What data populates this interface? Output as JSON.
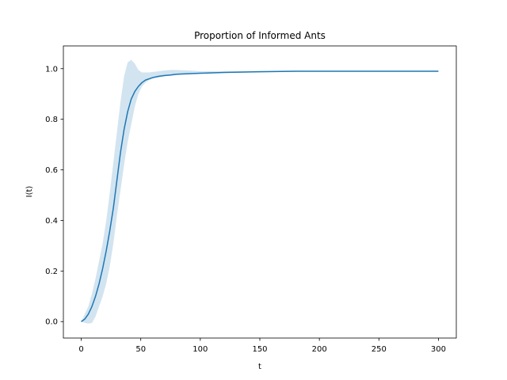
{
  "chart_data": {
    "type": "line",
    "title": "Proportion of Informed Ants",
    "xlabel": "t",
    "ylabel": "I(t)",
    "xlim": [
      -15,
      315
    ],
    "ylim": [
      -0.065,
      1.09
    ],
    "xticks": [
      0,
      50,
      100,
      150,
      200,
      250,
      300
    ],
    "xtick_labels": [
      "0",
      "50",
      "100",
      "150",
      "200",
      "250",
      "300"
    ],
    "yticks": [
      0.0,
      0.2,
      0.4,
      0.6,
      0.8,
      1.0
    ],
    "ytick_labels": [
      "0.0",
      "0.2",
      "0.4",
      "0.6",
      "0.8",
      "1.0"
    ],
    "grid": false,
    "colors": {
      "line": "#1f77b4",
      "band": "#1f77b4"
    },
    "series": [
      {
        "x": [
          0,
          3,
          6,
          9,
          12,
          15,
          18,
          21,
          24,
          27,
          30,
          33,
          36,
          39,
          42,
          45,
          48,
          51,
          54,
          57,
          60,
          65,
          70,
          75,
          80,
          90,
          100,
          120,
          150,
          180,
          200,
          250,
          300
        ],
        "y": [
          0.0,
          0.01,
          0.03,
          0.06,
          0.1,
          0.15,
          0.21,
          0.28,
          0.36,
          0.45,
          0.56,
          0.67,
          0.76,
          0.83,
          0.88,
          0.91,
          0.93,
          0.945,
          0.955,
          0.96,
          0.965,
          0.97,
          0.973,
          0.975,
          0.978,
          0.98,
          0.982,
          0.985,
          0.988,
          0.99,
          0.99,
          0.99,
          0.99
        ],
        "lower": [
          0.0,
          -0.005,
          -0.008,
          -0.005,
          0.02,
          0.06,
          0.1,
          0.15,
          0.22,
          0.31,
          0.42,
          0.52,
          0.62,
          0.71,
          0.78,
          0.85,
          0.9,
          0.93,
          0.945,
          0.955,
          0.96,
          0.965,
          0.97,
          0.972,
          0.975,
          0.978,
          0.98,
          0.983,
          0.986,
          0.988,
          0.99,
          0.99,
          0.99
        ],
        "upper": [
          0.0,
          0.03,
          0.06,
          0.11,
          0.17,
          0.24,
          0.31,
          0.4,
          0.51,
          0.63,
          0.75,
          0.87,
          0.97,
          1.025,
          1.035,
          1.02,
          0.995,
          0.985,
          0.985,
          0.985,
          0.987,
          0.99,
          0.993,
          0.995,
          0.995,
          0.993,
          0.99,
          0.99,
          0.991,
          0.992,
          0.992,
          0.992,
          0.992
        ]
      }
    ]
  }
}
